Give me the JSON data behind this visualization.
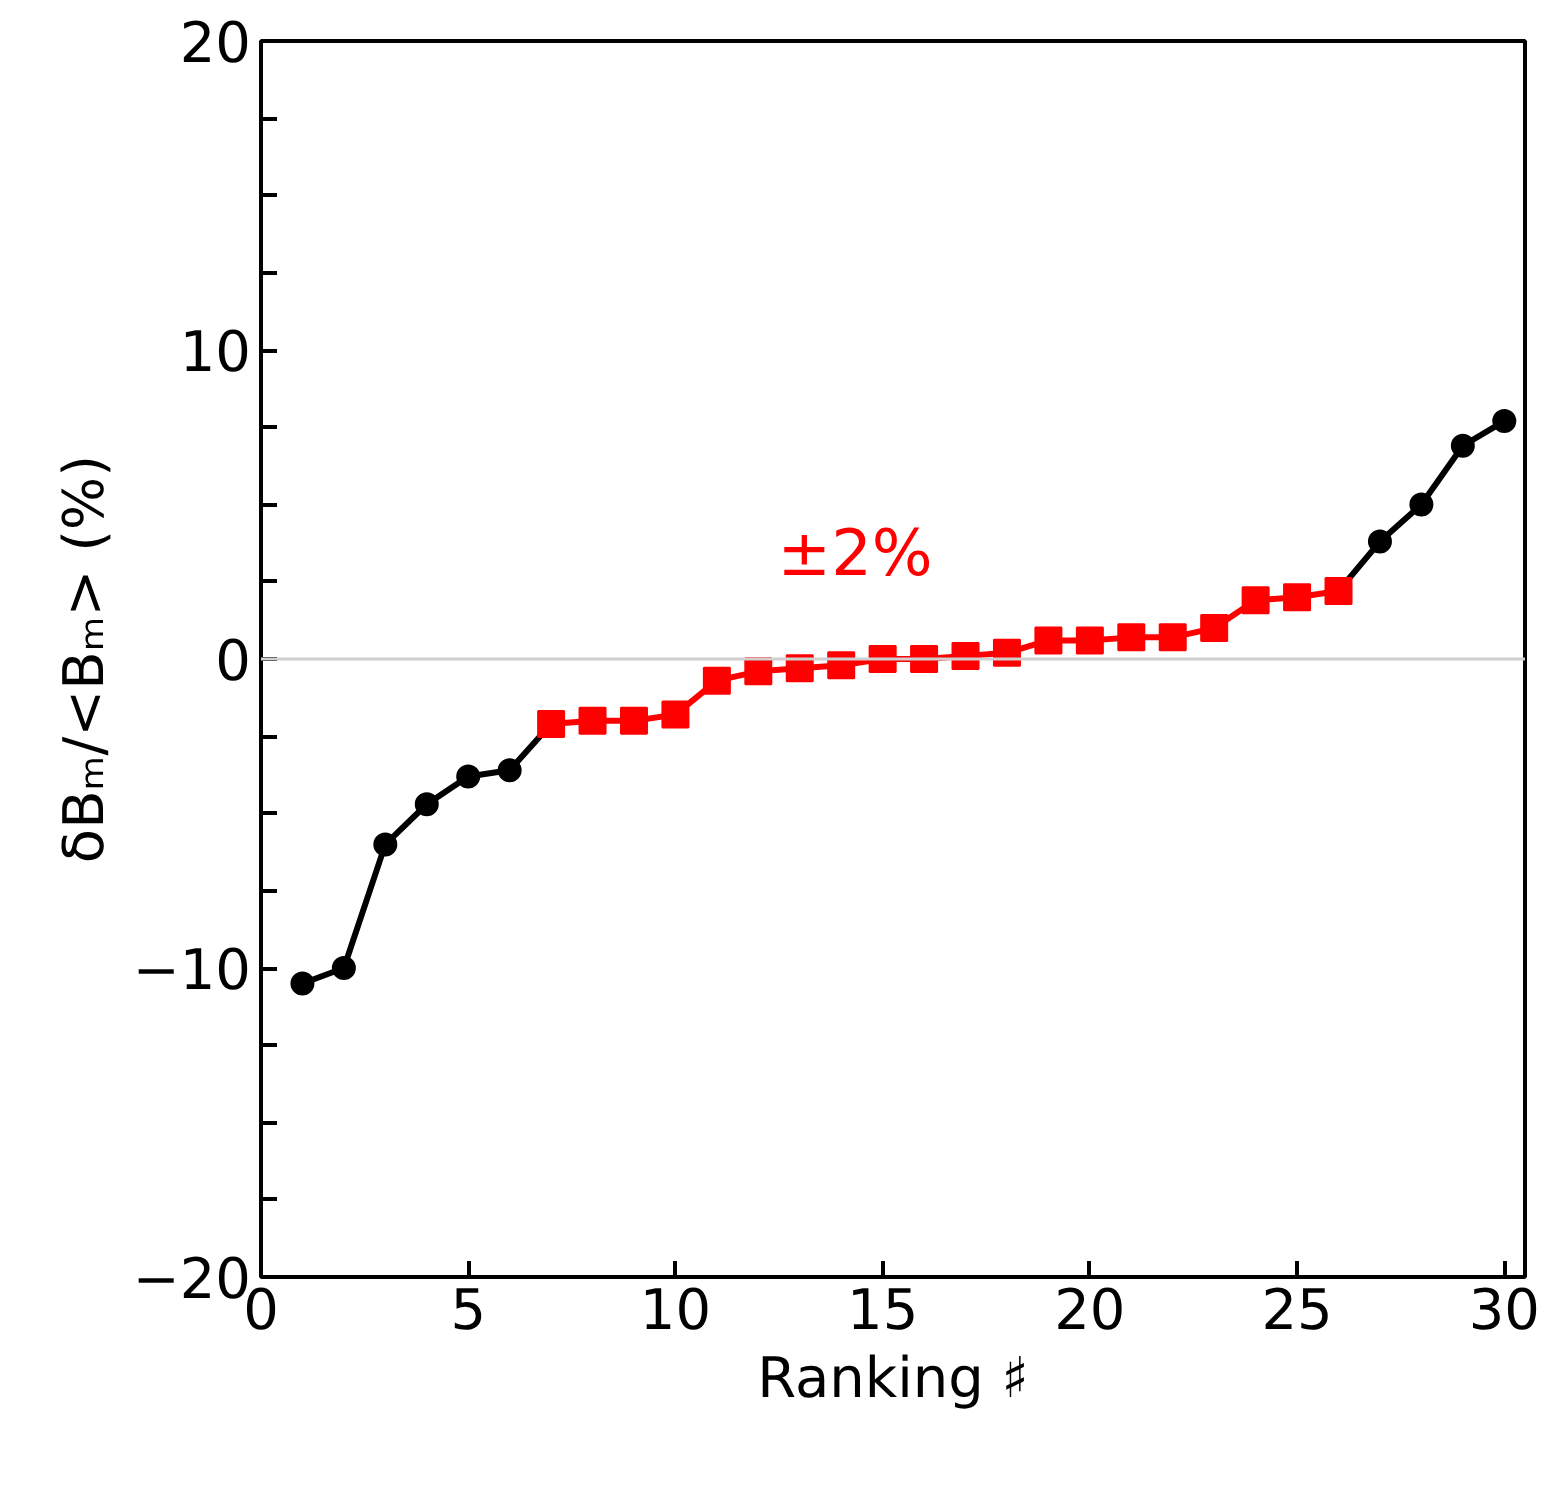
{
  "chart_data": {
    "type": "line",
    "xlabel": "Ranking ♯",
    "ylabel": "δBₘ/<Bₘ> (%)",
    "series": [
      {
        "color": "#000000",
        "marker": "circle",
        "x": [
          1,
          2,
          3,
          4,
          5,
          6,
          7,
          8,
          9,
          10,
          11,
          12,
          13,
          14,
          15,
          16,
          17,
          18,
          19,
          20,
          21,
          22,
          23,
          24,
          25,
          26,
          27,
          28,
          29,
          30
        ],
        "values": [
          -10.5,
          -10.0,
          -6.0,
          -4.7,
          -3.8,
          -3.6,
          -2.1,
          null,
          null,
          null,
          null,
          null,
          null,
          null,
          null,
          null,
          null,
          null,
          null,
          null,
          null,
          null,
          null,
          null,
          null,
          2.2,
          3.8,
          5.0,
          6.9,
          7.7
        ]
      },
      {
        "color": "#ff0000",
        "marker": "square",
        "x": [
          7,
          8,
          9,
          10,
          11,
          12,
          13,
          14,
          15,
          16,
          17,
          18,
          19,
          20,
          21,
          22,
          23,
          24,
          25,
          26
        ],
        "values": [
          -2.1,
          -2.0,
          -2.0,
          -1.8,
          -0.7,
          -0.4,
          -0.3,
          -0.2,
          0.0,
          0.0,
          0.1,
          0.2,
          0.6,
          0.6,
          0.7,
          0.7,
          1.0,
          1.9,
          2.0,
          2.2
        ]
      }
    ],
    "annotations": [
      "±2%"
    ],
    "ref_lines": [
      {
        "axis": "y",
        "value": 0,
        "color": "#d0d0d0"
      }
    ],
    "xlim": [
      0,
      30.5
    ],
    "ylim": [
      -20,
      20
    ],
    "xticks": [
      0,
      5,
      10,
      15,
      20,
      25,
      30
    ],
    "yticks": [
      {
        "value": -20,
        "label": "−20"
      },
      {
        "value": -17.5,
        "label": null
      },
      {
        "value": -15,
        "label": null
      },
      {
        "value": -12.5,
        "label": null
      },
      {
        "value": -10,
        "label": "−10"
      },
      {
        "value": -7.5,
        "label": null
      },
      {
        "value": -5,
        "label": null
      },
      {
        "value": -2.5,
        "label": null
      },
      0,
      {
        "value": 2.5,
        "label": null
      },
      {
        "value": 5,
        "label": null
      },
      {
        "value": 7.5,
        "label": null
      },
      10,
      {
        "value": 12.5,
        "label": null
      },
      {
        "value": 15,
        "label": null
      },
      {
        "value": 17.5,
        "label": null
      },
      20
    ],
    "grid": false
  }
}
